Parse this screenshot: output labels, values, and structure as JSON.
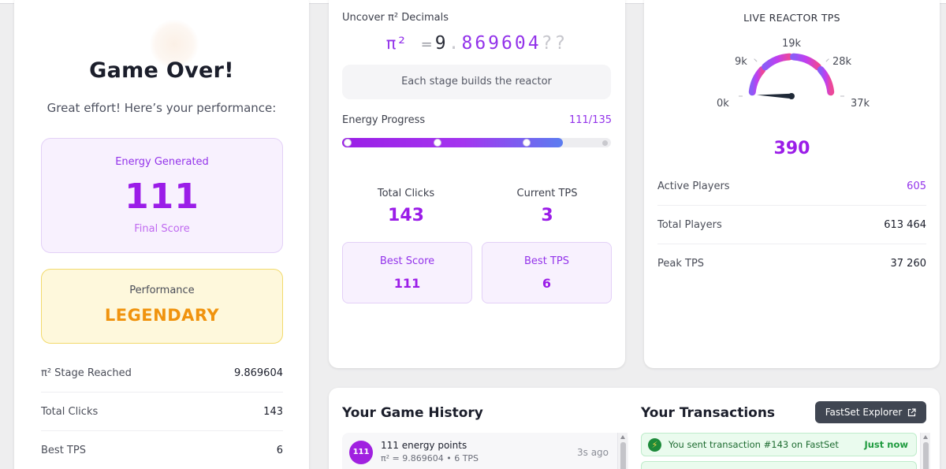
{
  "summary": {
    "title": "Game Over!",
    "subtitle": "Great effort! Here’s your performance:",
    "energy_label": "Energy Generated",
    "energy_value": "111",
    "energy_caption": "Final Score",
    "performance_label": "Performance",
    "performance_value": "LEGENDARY",
    "stats": [
      {
        "label": "π² Stage Reached",
        "value": "9.869604"
      },
      {
        "label": "Total Clicks",
        "value": "143"
      },
      {
        "label": "Best TPS",
        "value": "6"
      }
    ]
  },
  "reactor": {
    "title": "Uncover π² Decimals",
    "pi_symbol": "π²",
    "equals": "=",
    "integer_part": "9",
    "dot": ".",
    "decimals": "869604",
    "unknown": "??",
    "builds_text": "Each stage builds the reactor",
    "progress_label": "Energy Progress",
    "progress_text": "111/135",
    "progress_current": 111,
    "progress_max": 135,
    "progress_markers": 3,
    "total_clicks_label": "Total Clicks",
    "total_clicks_value": "143",
    "current_tps_label": "Current TPS",
    "current_tps_value": "3",
    "best_score_label": "Best Score",
    "best_score_value": "111",
    "best_tps_label": "Best TPS",
    "best_tps_value": "6"
  },
  "live": {
    "title": "LIVE REACTOR TPS",
    "gauge_value": 390,
    "gauge_value_text": "390",
    "gauge_max": 37260,
    "tick_labels": [
      "0k",
      "9k",
      "19k",
      "28k",
      "37k"
    ],
    "rows": [
      {
        "label": "Active Players",
        "value": "605",
        "accent": true
      },
      {
        "label": "Total Players",
        "value": "613 464",
        "accent": false
      },
      {
        "label": "Peak TPS",
        "value": "37 260",
        "accent": false
      }
    ],
    "colors": {
      "arc_start": "#8b5cf6",
      "arc_mid": "#c13ef0",
      "arc_end": "#ec4899",
      "needle": "#1f2937"
    }
  },
  "history": {
    "title": "Your Game History",
    "items": [
      {
        "badge": "111",
        "main": "111 energy points",
        "sub": "π² = 9.869604 • 6 TPS",
        "time": "3s ago"
      }
    ]
  },
  "transactions": {
    "title": "Your Transactions",
    "explorer_label": "FastSet Explorer",
    "external_icon": "external-link-icon",
    "items": [
      {
        "icon": "lightning-icon",
        "text": "You sent transaction #143 on FastSet",
        "time": "Just now"
      }
    ]
  }
}
